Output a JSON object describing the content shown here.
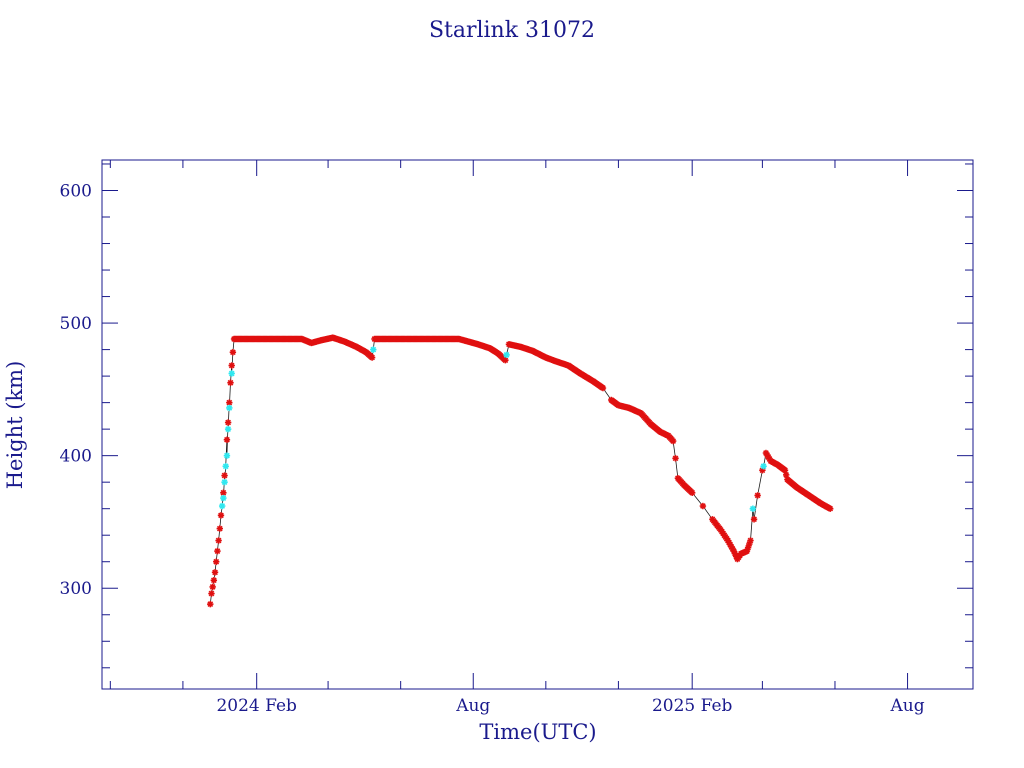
{
  "chart_data": {
    "type": "scatter",
    "title": "Starlink 31072",
    "xlabel": "Time(UTC)",
    "ylabel": "Height (km)",
    "x_ticks": [
      {
        "label": "2024 Feb",
        "date": "2024-02-01"
      },
      {
        "label": "Aug",
        "date": "2024-08-01"
      },
      {
        "label": "2025 Feb",
        "date": "2025-02-01"
      },
      {
        "label": "Aug",
        "date": "2025-08-01"
      }
    ],
    "y_ticks": [
      300,
      400,
      500,
      600
    ],
    "xlim": [
      "2023-09-24",
      "2025-09-25"
    ],
    "ylim": [
      224,
      623
    ],
    "grid": false,
    "colors": {
      "frame": "#1a1a8c",
      "text": "#1a1a8c",
      "series_main": "#e01010",
      "series_alt": "#30e8f0"
    },
    "series": [
      {
        "color": "red",
        "points": [
          [
            "2023-12-24",
            288
          ],
          [
            "2023-12-25",
            296
          ],
          [
            "2023-12-26",
            301
          ],
          [
            "2023-12-27",
            306
          ],
          [
            "2023-12-28",
            312
          ],
          [
            "2023-12-29",
            320
          ],
          [
            "2023-12-30",
            328
          ],
          [
            "2023-12-31",
            336
          ],
          [
            "2024-01-01",
            345
          ],
          [
            "2024-01-02",
            355
          ],
          [
            "2024-01-04",
            372
          ],
          [
            "2024-01-05",
            385
          ],
          [
            "2024-01-07",
            412
          ],
          [
            "2024-01-08",
            425
          ],
          [
            "2024-01-09",
            440
          ],
          [
            "2024-01-10",
            455
          ],
          [
            "2024-01-11",
            468
          ],
          [
            "2024-01-12",
            478
          ],
          [
            "2024-01-13",
            488
          ],
          [
            "2024-01-20",
            488
          ],
          [
            "2024-02-01",
            488
          ],
          [
            "2024-02-15",
            488
          ],
          [
            "2024-03-01",
            488
          ],
          [
            "2024-03-10",
            488
          ],
          [
            "2024-03-18",
            485
          ],
          [
            "2024-03-26",
            487
          ],
          [
            "2024-04-05",
            489
          ],
          [
            "2024-04-15",
            486
          ],
          [
            "2024-04-25",
            482
          ],
          [
            "2024-05-03",
            478
          ],
          [
            "2024-05-08",
            474
          ],
          [
            "2024-05-10",
            488
          ],
          [
            "2024-05-25",
            488
          ],
          [
            "2024-06-10",
            488
          ],
          [
            "2024-06-25",
            488
          ],
          [
            "2024-07-10",
            488
          ],
          [
            "2024-07-20",
            488
          ],
          [
            "2024-07-28",
            486
          ],
          [
            "2024-08-05",
            484
          ],
          [
            "2024-08-15",
            481
          ],
          [
            "2024-08-22",
            477
          ],
          [
            "2024-08-28",
            472
          ],
          [
            "2024-08-31",
            484
          ],
          [
            "2024-09-10",
            482
          ],
          [
            "2024-09-20",
            479
          ],
          [
            "2024-10-01",
            474
          ],
          [
            "2024-10-10",
            471
          ],
          [
            "2024-10-20",
            468
          ],
          [
            "2024-10-30",
            462
          ],
          [
            "2024-11-10",
            456
          ],
          [
            "2024-11-18",
            451
          ],
          [
            "2024-11-25",
            442
          ],
          [
            "2024-12-01",
            438
          ],
          [
            "2024-12-10",
            436
          ],
          [
            "2024-12-20",
            432
          ],
          [
            "2024-12-28",
            424
          ],
          [
            "2025-01-05",
            418
          ],
          [
            "2025-01-12",
            415
          ],
          [
            "2025-01-16",
            411
          ],
          [
            "2025-01-18",
            398
          ],
          [
            "2025-01-20",
            383
          ],
          [
            "2025-01-25",
            378
          ],
          [
            "2025-02-01",
            372
          ],
          [
            "2025-02-10",
            362
          ],
          [
            "2025-02-18",
            352
          ],
          [
            "2025-02-25",
            344
          ],
          [
            "2025-03-03",
            336
          ],
          [
            "2025-03-08",
            328
          ],
          [
            "2025-03-11",
            322
          ],
          [
            "2025-03-14",
            326
          ],
          [
            "2025-03-19",
            328
          ],
          [
            "2025-03-22",
            336
          ],
          [
            "2025-03-25",
            352
          ],
          [
            "2025-03-28",
            370
          ],
          [
            "2025-04-01",
            389
          ],
          [
            "2025-04-04",
            402
          ],
          [
            "2025-04-08",
            396
          ],
          [
            "2025-04-14",
            393
          ],
          [
            "2025-04-20",
            389
          ],
          [
            "2025-04-22",
            382
          ],
          [
            "2025-04-30",
            376
          ],
          [
            "2025-05-10",
            370
          ],
          [
            "2025-05-20",
            364
          ],
          [
            "2025-05-28",
            360
          ]
        ]
      },
      {
        "color": "cyan",
        "points": [
          [
            "2024-01-03",
            362
          ],
          [
            "2024-01-04",
            368
          ],
          [
            "2024-01-05",
            380
          ],
          [
            "2024-01-06",
            392
          ],
          [
            "2024-01-07",
            400
          ],
          [
            "2024-01-08",
            420
          ],
          [
            "2024-01-09",
            436
          ],
          [
            "2024-01-11",
            462
          ],
          [
            "2024-05-09",
            480
          ],
          [
            "2024-08-29",
            476
          ],
          [
            "2025-03-24",
            360
          ],
          [
            "2025-04-02",
            392
          ]
        ]
      }
    ]
  }
}
